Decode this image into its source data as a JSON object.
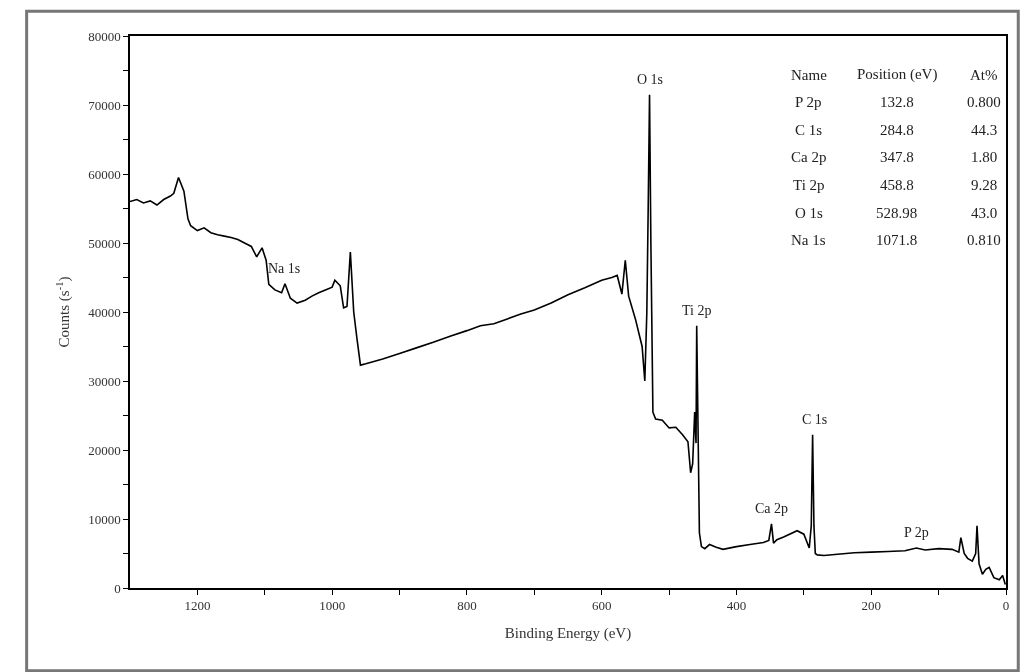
{
  "chart_data": {
    "type": "line",
    "xlabel": "Binding Energy (eV)",
    "ylabel": "Counts (s$^{-1}$)",
    "xlim": [
      1300,
      0
    ],
    "xticks": [
      {
        "value": 1200,
        "label": "1200"
      },
      {
        "value": 1100,
        "label": null
      },
      {
        "value": 1000,
        "label": "1000"
      },
      {
        "value": 900,
        "label": null
      },
      {
        "value": 800,
        "label": "800"
      },
      {
        "value": 700,
        "label": null
      },
      {
        "value": 600,
        "label": "600"
      },
      {
        "value": 500,
        "label": null
      },
      {
        "value": 400,
        "label": "400"
      },
      {
        "value": 300,
        "label": null
      },
      {
        "value": 200,
        "label": "200"
      },
      {
        "value": 100,
        "label": null
      },
      {
        "value": 0,
        "label": "0"
      }
    ],
    "ylim": [
      0,
      80000
    ],
    "yticks": [
      0,
      {
        "value": 5000,
        "label": null
      },
      10000,
      {
        "value": 15000,
        "label": null
      },
      20000,
      {
        "value": 25000,
        "label": null
      },
      30000,
      {
        "value": 35000,
        "label": null
      },
      40000,
      {
        "value": 45000,
        "label": null
      },
      50000,
      {
        "value": 55000,
        "label": null
      },
      60000,
      {
        "value": 65000,
        "label": null
      },
      70000,
      {
        "value": 75000,
        "label": null
      },
      80000
    ],
    "marker": "none",
    "line_style": "solid",
    "series": [
      {
        "color": "#000000",
        "x": [
          1300,
          1290,
          1280,
          1270,
          1260,
          1250,
          1240,
          1235,
          1228,
          1220,
          1214,
          1210,
          1200,
          1190,
          1180,
          1170,
          1160,
          1150,
          1140,
          1130,
          1120,
          1112,
          1104,
          1098,
          1094,
          1085,
          1075,
          1070,
          1062,
          1052,
          1040,
          1030,
          1020,
          1010,
          1000,
          996,
          988,
          983,
          978,
          973,
          968,
          963,
          958,
          950,
          925,
          900,
          875,
          850,
          825,
          800,
          780,
          760,
          740,
          720,
          700,
          675,
          650,
          625,
          600,
          585,
          577,
          570,
          565,
          560,
          550,
          540,
          536,
          533,
          531,
          529,
          527,
          524,
          520,
          510,
          500,
          490,
          480,
          472,
          468,
          465,
          462,
          460,
          459,
          457,
          455,
          452,
          447,
          440,
          430,
          420,
          400,
          380,
          360,
          352,
          348,
          345,
          340,
          330,
          310,
          300,
          292,
          289,
          287,
          285,
          283,
          280,
          270,
          250,
          225,
          200,
          175,
          150,
          133,
          120,
          100,
          80,
          70,
          67,
          62,
          57,
          50,
          45,
          43,
          40,
          35,
          30,
          25,
          18,
          10,
          5,
          1
        ],
        "values": [
          56000,
          56300,
          55800,
          56100,
          55500,
          56300,
          56800,
          57200,
          59500,
          57500,
          53500,
          52500,
          51800,
          52200,
          51500,
          51200,
          51000,
          50800,
          50500,
          50000,
          49500,
          48000,
          49300,
          47500,
          44000,
          43200,
          42800,
          44100,
          42000,
          41300,
          41700,
          42300,
          42800,
          43200,
          43600,
          44600,
          43800,
          40600,
          40800,
          48700,
          40000,
          36000,
          32300,
          32500,
          33200,
          34000,
          34800,
          35600,
          36500,
          37300,
          38000,
          38300,
          39000,
          39700,
          40300,
          41300,
          42500,
          43500,
          44600,
          45000,
          45300,
          42600,
          47500,
          42300,
          39000,
          35000,
          30000,
          40000,
          55000,
          71500,
          50000,
          25500,
          24500,
          24300,
          23200,
          23300,
          22200,
          21200,
          16700,
          18000,
          25500,
          21000,
          38000,
          23000,
          8000,
          6000,
          5700,
          6300,
          5900,
          5600,
          6000,
          6300,
          6600,
          6900,
          9300,
          6500,
          7000,
          7400,
          8300,
          7800,
          5800,
          9000,
          22200,
          9000,
          5000,
          4800,
          4700,
          4900,
          5100,
          5200,
          5300,
          5400,
          5800,
          5500,
          5700,
          5600,
          5200,
          7300,
          5000,
          4300,
          3900,
          5000,
          9000,
          3500,
          2000,
          2700,
          3000,
          1500,
          1200,
          1800,
          500
        ]
      }
    ],
    "annotations": [
      {
        "text": "O 1s",
        "x": 529,
        "y": 71500
      },
      {
        "text": "Ti 2p",
        "x": 458.8,
        "y": 38000
      },
      {
        "text": "C 1s",
        "x": 284.8,
        "y": 22200
      },
      {
        "text": "Ca 2p",
        "x": 347.8,
        "y": 9300
      },
      {
        "text": "P 2p",
        "x": 132.8,
        "y": 5800
      },
      {
        "text": "Na 1s",
        "x": 1071.8,
        "y": 44100
      },
      "Name",
      "Position (eV)",
      "At%",
      "P 2p",
      "132.8",
      "0.800",
      "C 1s",
      "284.8",
      "44.3",
      "Ca 2p",
      "347.8",
      "1.80",
      "Ti 2p",
      "458.8",
      "9.28",
      "O 1s",
      "528.98",
      "43.0",
      "Na 1s",
      "1071.8",
      "0.810"
    ]
  }
}
